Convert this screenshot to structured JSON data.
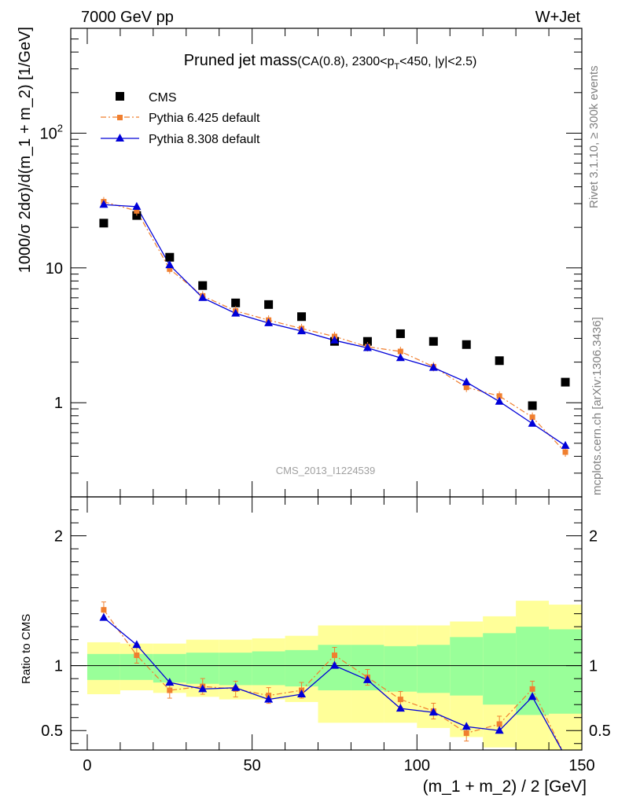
{
  "header": {
    "left": "7000 GeV pp",
    "right": "W+Jet"
  },
  "side_labels": {
    "rivet": "Rivet 3.1.10, ≥ 300k events",
    "mcplots": "mcplots.cern.ch [arXiv:1306.3436]"
  },
  "chart_data": [
    {
      "type": "scatter",
      "panel": "main",
      "title": "Pruned jet mass",
      "subtitle_parts": [
        "(CA(0.8), 2300<p",
        "T",
        "<450, |y|<2.5)"
      ],
      "watermark": "CMS_2013_I1224539",
      "ylabel": "1000/σ 2dσ)/d(m_1 + m_2) [1/GeV]",
      "yscale": "log",
      "ylim": [
        0.2,
        600
      ],
      "xlim": [
        -5,
        150
      ],
      "y_tick_labels": [
        {
          "value": 1,
          "label": "1"
        },
        {
          "value": 10,
          "label": "10"
        },
        {
          "value": 100,
          "label": "10",
          "sup": "2"
        }
      ],
      "legend_position": "top-left",
      "x": [
        5,
        15,
        25,
        35,
        45,
        55,
        65,
        75,
        85,
        95,
        105,
        115,
        125,
        135,
        145
      ],
      "series": [
        {
          "name": "CMS",
          "marker": "square",
          "color": "#000000",
          "values": [
            21.5,
            24.5,
            12.0,
            7.4,
            5.5,
            5.35,
            4.35,
            2.85,
            2.85,
            3.25,
            2.85,
            2.7,
            2.05,
            0.95,
            1.42
          ]
        },
        {
          "name": "Pythia 6.425 default",
          "marker": "small-square",
          "line": "dashdot",
          "color": "#f07f2f",
          "values": [
            31.0,
            26.5,
            9.8,
            6.2,
            4.8,
            4.1,
            3.55,
            3.1,
            2.6,
            2.4,
            1.85,
            1.3,
            1.12,
            0.78,
            0.43
          ]
        },
        {
          "name": "Pythia 8.308 default",
          "marker": "triangle",
          "line": "solid",
          "color": "#0000d8",
          "values": [
            29.5,
            28.5,
            10.5,
            6.0,
            4.6,
            3.9,
            3.4,
            2.9,
            2.55,
            2.15,
            1.82,
            1.42,
            1.02,
            0.7,
            0.48
          ]
        }
      ]
    },
    {
      "type": "line",
      "panel": "ratio",
      "ylabel": "Ratio to CMS",
      "xlabel": "(m_1 + m_2) / 2 [GeV]",
      "ylim": [
        0.35,
        2.3
      ],
      "xlim": [
        -5,
        150
      ],
      "x_ticks": [
        0,
        50,
        100,
        150
      ],
      "y_ticks": [
        0.5,
        1,
        2
      ],
      "reference_line": 1,
      "bins": [
        {
          "lo": 0,
          "hi": 10,
          "band1": [
            0.89,
            1.09
          ],
          "band2": [
            0.78,
            1.18
          ]
        },
        {
          "lo": 10,
          "hi": 20,
          "band1": [
            0.89,
            1.09
          ],
          "band2": [
            0.81,
            1.17
          ]
        },
        {
          "lo": 20,
          "hi": 30,
          "band1": [
            0.87,
            1.09
          ],
          "band2": [
            0.79,
            1.17
          ]
        },
        {
          "lo": 30,
          "hi": 40,
          "band1": [
            0.86,
            1.1
          ],
          "band2": [
            0.76,
            1.2
          ]
        },
        {
          "lo": 40,
          "hi": 50,
          "band1": [
            0.85,
            1.1
          ],
          "band2": [
            0.74,
            1.2
          ]
        },
        {
          "lo": 50,
          "hi": 60,
          "band1": [
            0.85,
            1.11
          ],
          "band2": [
            0.74,
            1.21
          ]
        },
        {
          "lo": 60,
          "hi": 70,
          "band1": [
            0.84,
            1.12
          ],
          "band2": [
            0.72,
            1.23
          ]
        },
        {
          "lo": 70,
          "hi": 80,
          "band1": [
            0.81,
            1.16
          ],
          "band2": [
            0.56,
            1.31
          ]
        },
        {
          "lo": 80,
          "hi": 90,
          "band1": [
            0.81,
            1.16
          ],
          "band2": [
            0.56,
            1.31
          ]
        },
        {
          "lo": 90,
          "hi": 100,
          "band1": [
            0.8,
            1.15
          ],
          "band2": [
            0.56,
            1.31
          ]
        },
        {
          "lo": 100,
          "hi": 110,
          "band1": [
            0.79,
            1.16
          ],
          "band2": [
            0.52,
            1.31
          ]
        },
        {
          "lo": 110,
          "hi": 120,
          "band1": [
            0.77,
            1.22
          ],
          "band2": [
            0.45,
            1.34
          ]
        },
        {
          "lo": 120,
          "hi": 130,
          "band1": [
            0.7,
            1.25
          ],
          "band2": [
            0.37,
            1.38
          ]
        },
        {
          "lo": 130,
          "hi": 140,
          "band1": [
            0.62,
            1.3
          ],
          "band2": [
            0.3,
            1.5
          ]
        },
        {
          "lo": 140,
          "hi": 150,
          "band1": [
            0.63,
            1.28
          ],
          "band2": [
            0.3,
            1.47
          ]
        }
      ],
      "band_colors": {
        "inner": "#99ff99",
        "outer": "#ffff99"
      },
      "series": [
        {
          "name": "Pythia 6.425 default",
          "color": "#f07f2f",
          "values": [
            1.43,
            1.08,
            0.81,
            0.84,
            0.82,
            0.77,
            0.81,
            1.08,
            0.91,
            0.74,
            0.65,
            0.48,
            0.55,
            0.82,
            0.3
          ]
        },
        {
          "name": "Pythia 8.308 default",
          "color": "#0000d8",
          "values": [
            1.37,
            1.16,
            0.87,
            0.82,
            0.83,
            0.74,
            0.78,
            1.0,
            0.89,
            0.67,
            0.64,
            0.53,
            0.5,
            0.76,
            0.3
          ]
        }
      ]
    }
  ]
}
